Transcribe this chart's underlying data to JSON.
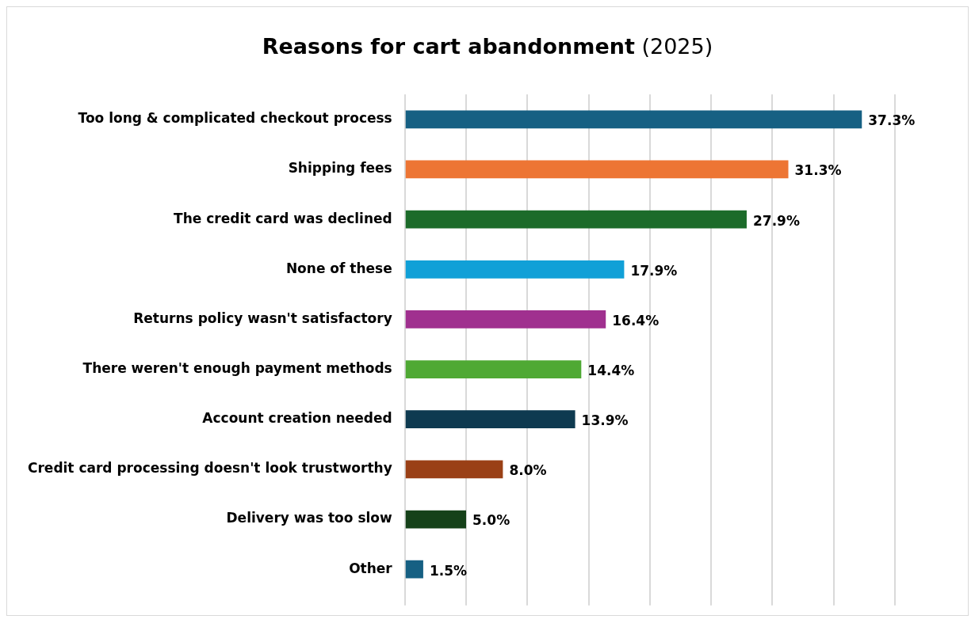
{
  "chart_data": {
    "type": "bar",
    "orientation": "horizontal",
    "title": "Reasons for cart abandonment",
    "subtitle": "(2025)",
    "categories": [
      "Too long & complicated checkout process",
      "Shipping fees",
      "The credit card was declined",
      "None of these",
      "Returns policy wasn't satisfactory",
      "There weren't enough payment methods",
      "Account creation needed",
      "Credit card processing doesn't look trustworthy",
      "Delivery was too slow",
      "Other"
    ],
    "values": [
      37.3,
      31.3,
      27.9,
      17.9,
      16.4,
      14.4,
      13.9,
      8.0,
      5.0,
      1.5
    ],
    "colors": [
      "#166083",
      "#ed7534",
      "#1c6b2a",
      "#11a0d7",
      "#a0308f",
      "#4fa934",
      "#0e3a50",
      "#9a4016",
      "#154119",
      "#166083"
    ],
    "value_labels": [
      "37.3%",
      "31.3%",
      "27.9%",
      "17.9%",
      "16.4%",
      "14.4%",
      "13.9%",
      "8.0%",
      "5.0%",
      "1.5%"
    ],
    "xlim": [
      0,
      40
    ],
    "xticks": [
      {
        "value": 0,
        "label": null
      },
      {
        "value": 5,
        "label": null
      },
      {
        "value": 10,
        "label": null
      },
      {
        "value": 15,
        "label": null
      },
      {
        "value": 20,
        "label": null
      },
      {
        "value": 25,
        "label": null
      },
      {
        "value": 30,
        "label": null
      },
      {
        "value": 35,
        "label": null
      },
      {
        "value": 40,
        "label": null
      }
    ],
    "grid": "x",
    "tick_labels": "y"
  }
}
